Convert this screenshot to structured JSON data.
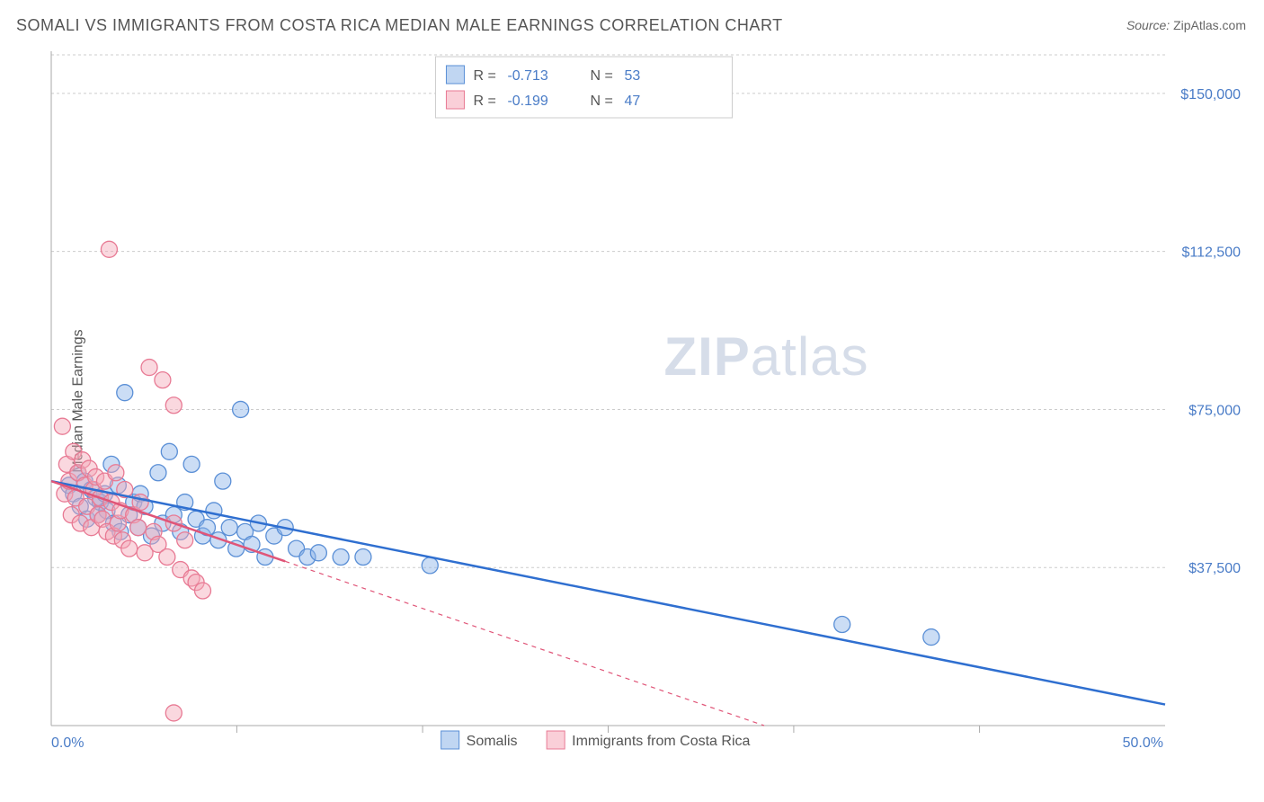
{
  "title": "SOMALI VS IMMIGRANTS FROM COSTA RICA MEDIAN MALE EARNINGS CORRELATION CHART",
  "source_label": "Source:",
  "source_value": "ZipAtlas.com",
  "y_axis_label": "Median Male Earnings",
  "watermark_bold": "ZIP",
  "watermark_rest": "atlas",
  "chart": {
    "type": "scatter",
    "x_min": 0.0,
    "x_max": 50.0,
    "y_min": 0,
    "y_max": 160000,
    "x_ticks_visible": [
      {
        "v": 0.0,
        "label": "0.0%"
      },
      {
        "v": 50.0,
        "label": "50.0%"
      }
    ],
    "x_minor_ticks": [
      8.33,
      16.67,
      25.0,
      33.33,
      41.67
    ],
    "y_ticks": [
      {
        "v": 37500,
        "label": "$37,500"
      },
      {
        "v": 75000,
        "label": "$75,000"
      },
      {
        "v": 112500,
        "label": "$112,500"
      },
      {
        "v": 150000,
        "label": "$150,000"
      }
    ],
    "background_color": "#ffffff",
    "grid_color": "#cccccc",
    "series": [
      {
        "name": "Somalis",
        "color_fill": "#8cb4e8",
        "color_stroke": "#5a8fd6",
        "color_trend": "#2f6fd0",
        "fill_opacity": 0.45,
        "marker_radius": 9,
        "r_value": "-0.713",
        "n_value": "53",
        "trend": {
          "x1": 0.0,
          "y1": 58000,
          "x2": 50.0,
          "y2": 5000,
          "dashed": false
        },
        "points": [
          [
            0.8,
            57000
          ],
          [
            1.0,
            55000
          ],
          [
            1.2,
            60000
          ],
          [
            1.3,
            52000
          ],
          [
            1.5,
            58000
          ],
          [
            1.6,
            49000
          ],
          [
            1.8,
            56000
          ],
          [
            2.0,
            54000
          ],
          [
            2.1,
            50000
          ],
          [
            2.2,
            53000
          ],
          [
            2.4,
            55000
          ],
          [
            2.5,
            51000
          ],
          [
            2.7,
            62000
          ],
          [
            2.8,
            48000
          ],
          [
            3.0,
            57000
          ],
          [
            3.1,
            46000
          ],
          [
            3.3,
            79000
          ],
          [
            3.5,
            50000
          ],
          [
            3.7,
            53000
          ],
          [
            3.9,
            47000
          ],
          [
            4.0,
            55000
          ],
          [
            4.2,
            52000
          ],
          [
            4.5,
            45000
          ],
          [
            4.8,
            60000
          ],
          [
            5.0,
            48000
          ],
          [
            5.3,
            65000
          ],
          [
            5.5,
            50000
          ],
          [
            5.8,
            46000
          ],
          [
            6.0,
            53000
          ],
          [
            6.3,
            62000
          ],
          [
            6.5,
            49000
          ],
          [
            6.8,
            45000
          ],
          [
            7.0,
            47000
          ],
          [
            7.3,
            51000
          ],
          [
            7.5,
            44000
          ],
          [
            7.7,
            58000
          ],
          [
            8.0,
            47000
          ],
          [
            8.3,
            42000
          ],
          [
            8.5,
            75000
          ],
          [
            8.7,
            46000
          ],
          [
            9.0,
            43000
          ],
          [
            9.3,
            48000
          ],
          [
            9.6,
            40000
          ],
          [
            10.0,
            45000
          ],
          [
            10.5,
            47000
          ],
          [
            11.0,
            42000
          ],
          [
            11.5,
            40000
          ],
          [
            12.0,
            41000
          ],
          [
            13.0,
            40000
          ],
          [
            14.0,
            40000
          ],
          [
            17.0,
            38000
          ],
          [
            35.5,
            24000
          ],
          [
            39.5,
            21000
          ]
        ]
      },
      {
        "name": "Immigrants from Costa Rica",
        "color_fill": "#f5a8b8",
        "color_stroke": "#e87a94",
        "color_trend": "#e05578",
        "fill_opacity": 0.45,
        "marker_radius": 9,
        "r_value": "-0.199",
        "n_value": "47",
        "trend": {
          "x1": 0.0,
          "y1": 58000,
          "x2": 32.0,
          "y2": 0,
          "dashed_from_x": 10.5
        },
        "points": [
          [
            0.5,
            71000
          ],
          [
            0.6,
            55000
          ],
          [
            0.7,
            62000
          ],
          [
            0.8,
            58000
          ],
          [
            0.9,
            50000
          ],
          [
            1.0,
            65000
          ],
          [
            1.1,
            54000
          ],
          [
            1.2,
            60000
          ],
          [
            1.3,
            48000
          ],
          [
            1.4,
            63000
          ],
          [
            1.5,
            57000
          ],
          [
            1.6,
            52000
          ],
          [
            1.7,
            61000
          ],
          [
            1.8,
            47000
          ],
          [
            1.9,
            56000
          ],
          [
            2.0,
            59000
          ],
          [
            2.1,
            50000
          ],
          [
            2.2,
            54000
          ],
          [
            2.3,
            49000
          ],
          [
            2.4,
            58000
          ],
          [
            2.5,
            46000
          ],
          [
            2.6,
            113000
          ],
          [
            2.7,
            53000
          ],
          [
            2.8,
            45000
          ],
          [
            2.9,
            60000
          ],
          [
            3.0,
            48000
          ],
          [
            3.1,
            51000
          ],
          [
            3.2,
            44000
          ],
          [
            3.3,
            56000
          ],
          [
            3.5,
            42000
          ],
          [
            3.7,
            50000
          ],
          [
            3.9,
            47000
          ],
          [
            4.0,
            53000
          ],
          [
            4.2,
            41000
          ],
          [
            4.4,
            85000
          ],
          [
            4.6,
            46000
          ],
          [
            4.8,
            43000
          ],
          [
            5.0,
            82000
          ],
          [
            5.2,
            40000
          ],
          [
            5.5,
            48000
          ],
          [
            5.5,
            76000
          ],
          [
            5.8,
            37000
          ],
          [
            6.0,
            44000
          ],
          [
            6.3,
            35000
          ],
          [
            6.5,
            34000
          ],
          [
            6.8,
            32000
          ],
          [
            5.5,
            3000
          ]
        ]
      }
    ],
    "stat_box": {
      "r_label": "R =",
      "n_label": "N ="
    },
    "legend_labels": [
      "Somalis",
      "Immigrants from Costa Rica"
    ]
  }
}
